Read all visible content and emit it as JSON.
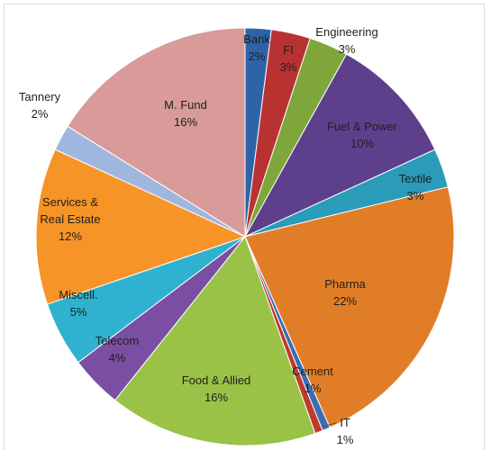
{
  "chart_data": {
    "type": "pie",
    "title": "",
    "slices": [
      {
        "name": "Bank",
        "value": 2,
        "label": "2%",
        "color": "#2e63a8"
      },
      {
        "name": "FI",
        "value": 3,
        "label": "3%",
        "color": "#b83232"
      },
      {
        "name": "Engineering",
        "value": 3,
        "label": "3%",
        "color": "#7fa63a"
      },
      {
        "name": "Fuel & Power",
        "value": 10,
        "label": "10%",
        "color": "#5e3f8c"
      },
      {
        "name": "Textile",
        "value": 3,
        "label": "3%",
        "color": "#2a9bb8"
      },
      {
        "name": "Pharma",
        "value": 22,
        "label": "22%",
        "color": "#e27d27"
      },
      {
        "name": "IT",
        "value": 0.6,
        "label": "1%",
        "color": "#3a6db3"
      },
      {
        "name": "Cement",
        "value": 0.6,
        "label": "1%",
        "color": "#c0392b"
      },
      {
        "name": "Food & Allied",
        "value": 16,
        "label": "16%",
        "color": "#9ac247"
      },
      {
        "name": "Telecom",
        "value": 4,
        "label": "4%",
        "color": "#7a4fa3"
      },
      {
        "name": "Miscell.",
        "value": 5,
        "label": "5%",
        "color": "#2fb2cf"
      },
      {
        "name": "Services &\nReal Estate",
        "value": 12,
        "label": "12%",
        "color": "#f79428"
      },
      {
        "name": "Tannery",
        "value": 2,
        "label": "2%",
        "color": "#9fb7de"
      },
      {
        "name": "M. Fund",
        "value": 16,
        "label": "16%",
        "color": "#d99a9a"
      }
    ],
    "legend": "none (labels on slices)"
  }
}
